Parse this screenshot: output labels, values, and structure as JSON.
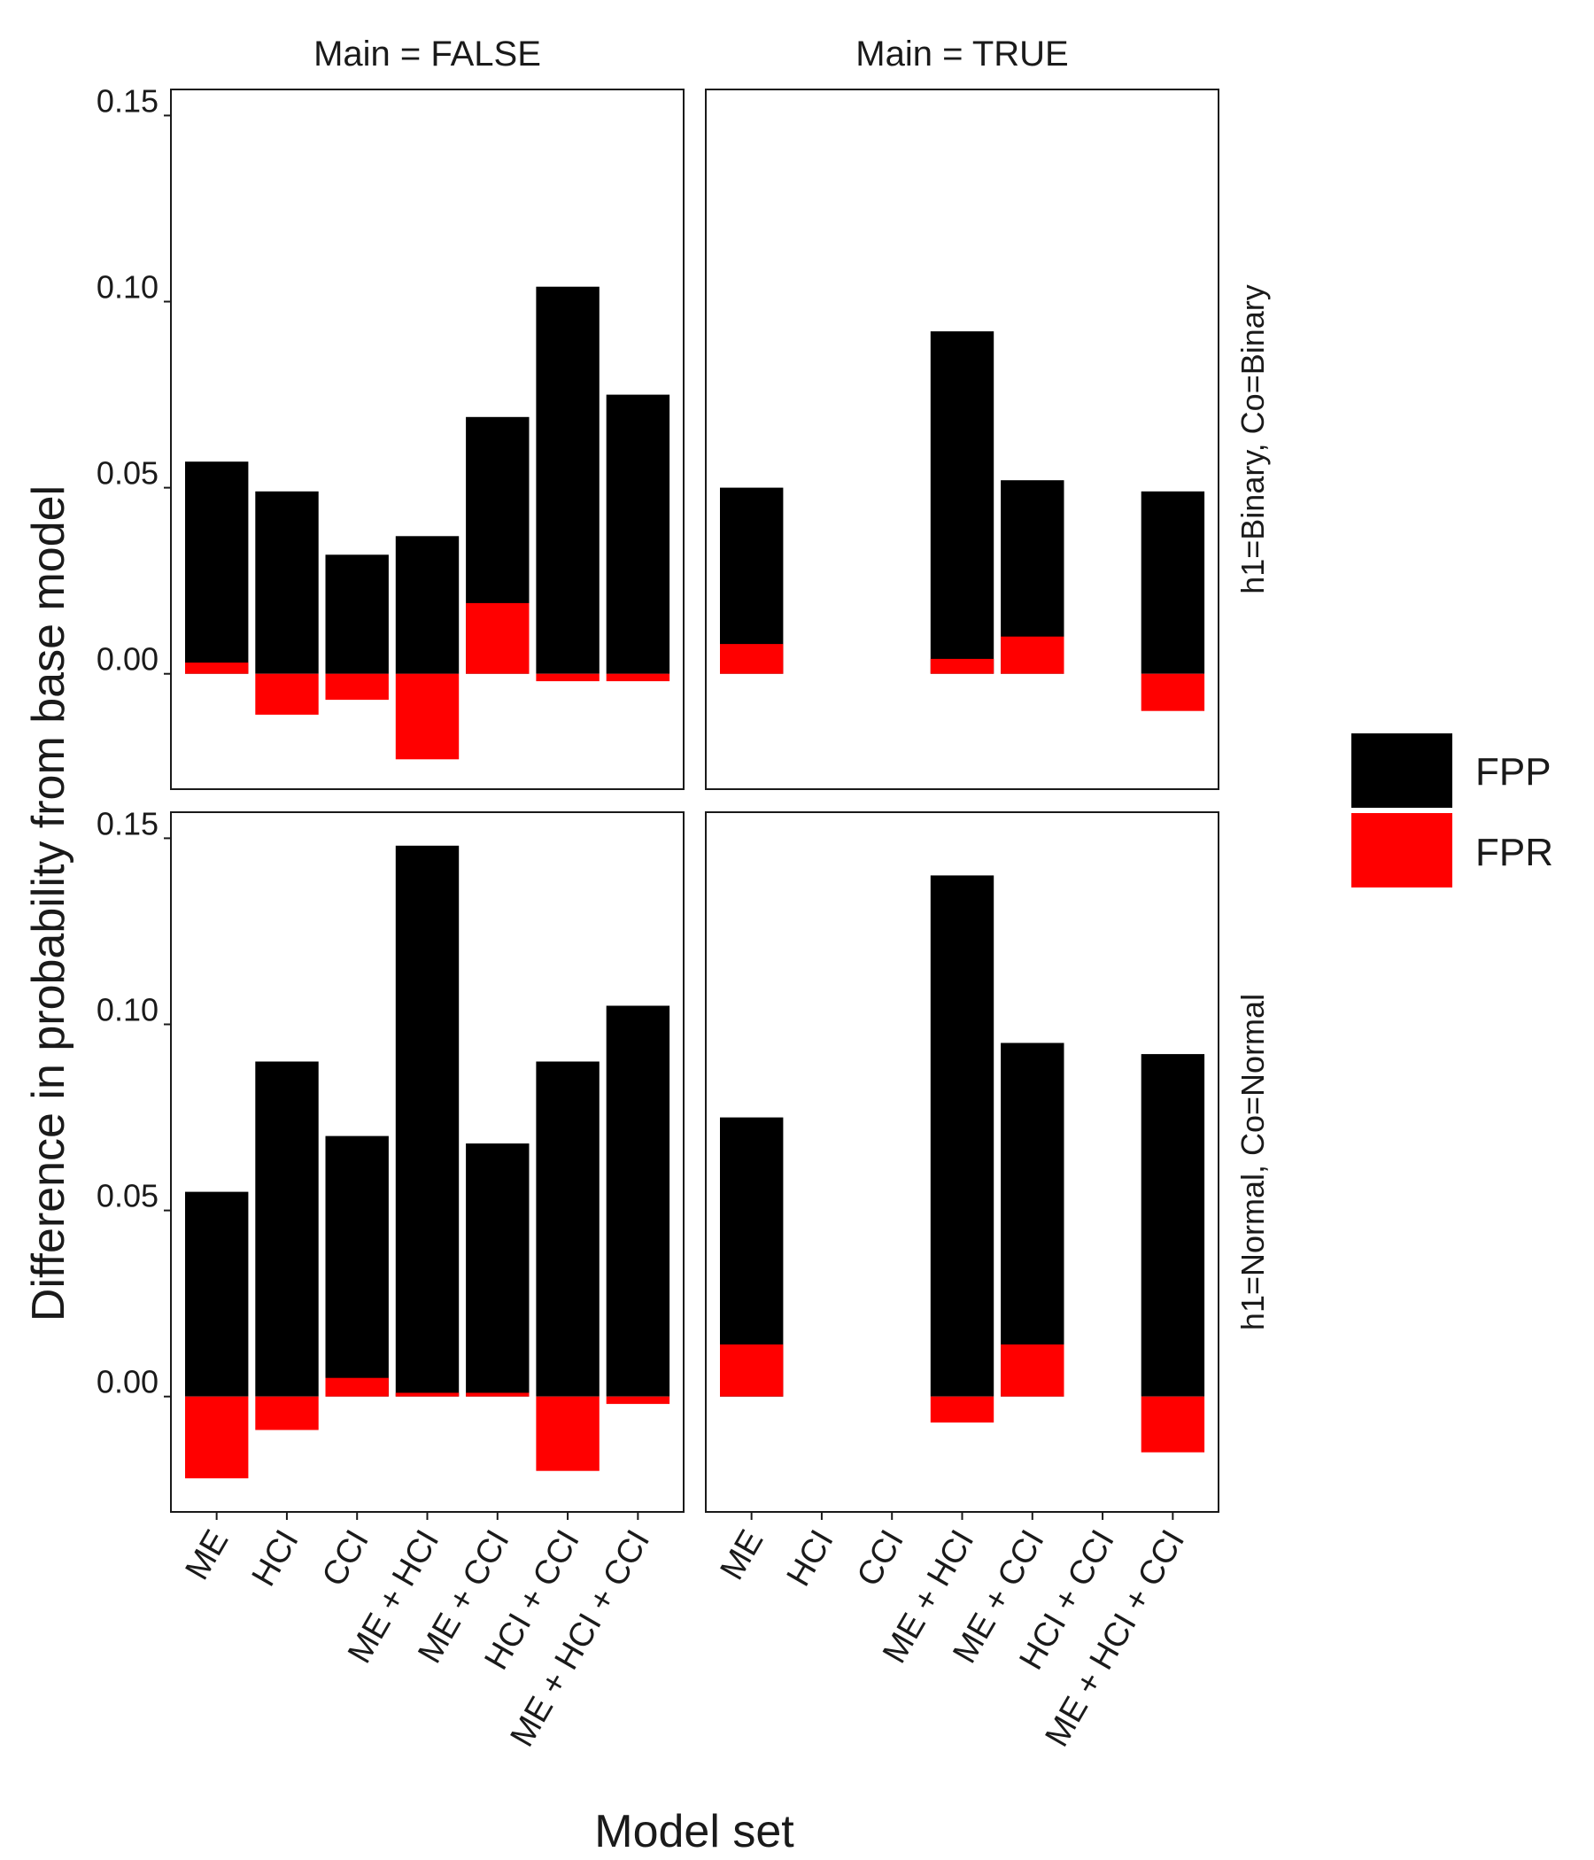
{
  "chart_data": {
    "type": "bar",
    "xlabel": "Model set",
    "ylabel": "Difference in probability from base model",
    "ylim": [
      -0.031,
      0.157
    ],
    "yticks": [
      0.0,
      0.05,
      0.1,
      0.15
    ],
    "ytick_labels": [
      "0.00",
      "0.05",
      "0.10",
      "0.15"
    ],
    "grid": false,
    "legend_position": "right",
    "categories": [
      "ME",
      "HCI",
      "CCI",
      "ME + HCI",
      "ME + CCI",
      "HCI + CCI",
      "ME + HCI + CCI"
    ],
    "col_facets": [
      "Main = FALSE",
      "Main = TRUE"
    ],
    "row_facets": [
      "h1=Binary, Co=Binary",
      "h1=Normal, Co=Normal"
    ],
    "series": [
      {
        "name": "FPP",
        "color": "#000000"
      },
      {
        "name": "FPR",
        "color": "#ff0000"
      }
    ],
    "panels": [
      {
        "row": 0,
        "col": 0,
        "FPP": [
          0.057,
          0.049,
          0.032,
          0.037,
          0.069,
          0.104,
          0.075
        ],
        "FPR": [
          0.003,
          -0.011,
          -0.007,
          -0.023,
          0.019,
          -0.002,
          -0.002
        ]
      },
      {
        "row": 0,
        "col": 1,
        "FPP": [
          0.05,
          null,
          null,
          0.092,
          0.052,
          null,
          0.049
        ],
        "FPR": [
          0.008,
          null,
          null,
          0.004,
          0.01,
          null,
          -0.01
        ]
      },
      {
        "row": 1,
        "col": 0,
        "FPP": [
          0.055,
          0.09,
          0.07,
          0.148,
          0.068,
          0.09,
          0.105
        ],
        "FPR": [
          -0.022,
          -0.009,
          0.005,
          0.001,
          0.001,
          -0.02,
          -0.002
        ]
      },
      {
        "row": 1,
        "col": 1,
        "FPP": [
          0.075,
          null,
          null,
          0.14,
          0.095,
          null,
          0.092
        ],
        "FPR": [
          0.014,
          null,
          null,
          -0.007,
          0.014,
          null,
          -0.015
        ]
      }
    ]
  }
}
